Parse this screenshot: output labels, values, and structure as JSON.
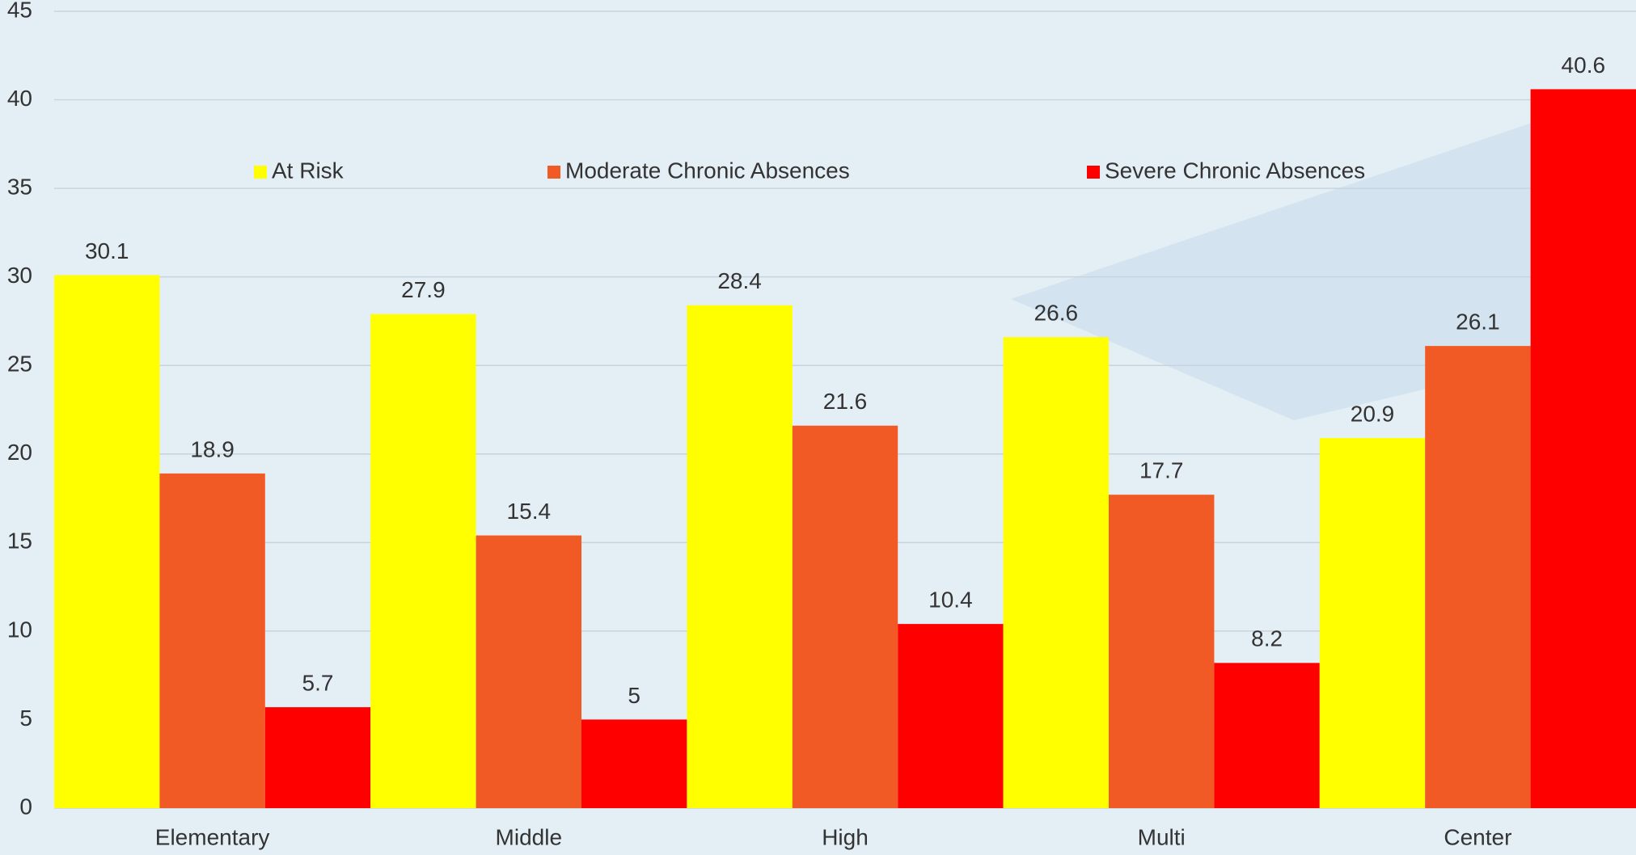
{
  "chart_data": {
    "type": "bar",
    "categories": [
      "Elementary",
      "Middle",
      "High",
      "Multi",
      "Center"
    ],
    "series": [
      {
        "name": "At Risk",
        "color": "#ffff00",
        "values": [
          30.1,
          27.9,
          28.4,
          26.6,
          20.9
        ]
      },
      {
        "name": "Moderate Chronic Absences",
        "color": "#f15a24",
        "values": [
          18.9,
          15.4,
          21.6,
          17.7,
          26.1
        ]
      },
      {
        "name": "Severe Chronic Absences",
        "color": "#ff0000",
        "values": [
          5.7,
          5,
          10.4,
          8.2,
          40.6
        ]
      }
    ],
    "ylim": [
      0,
      45
    ],
    "yticks": [
      0,
      5,
      10,
      15,
      20,
      25,
      30,
      35,
      40,
      45
    ],
    "grid": true,
    "legend": "top"
  }
}
